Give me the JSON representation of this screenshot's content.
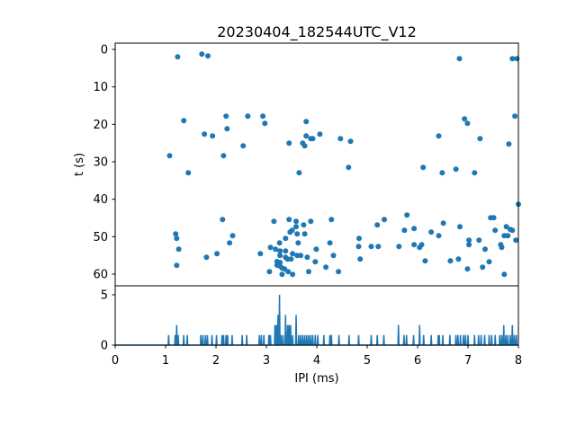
{
  "chart_data": [
    {
      "type": "scatter",
      "title": "20230404_182544UTC_V12",
      "xlabel": "",
      "ylabel": "t (s)",
      "xlim": [
        0,
        8
      ],
      "ylim": [
        62,
        -2
      ],
      "y_inverted": true,
      "yticks": [
        "0",
        "10",
        "20",
        "30",
        "40",
        "50",
        "60"
      ],
      "ytick_values": [
        0,
        10,
        20,
        30,
        40,
        50,
        60
      ],
      "color": "#1f77b4",
      "grid": false,
      "points": [
        [
          1.24,
          2.0
        ],
        [
          1.72,
          1.27
        ],
        [
          1.84,
          1.75
        ],
        [
          2.2,
          17.83
        ],
        [
          2.63,
          17.83
        ],
        [
          2.93,
          17.83
        ],
        [
          1.36,
          19.03
        ],
        [
          2.97,
          19.75
        ],
        [
          3.79,
          19.27
        ],
        [
          2.22,
          21.19
        ],
        [
          1.77,
          22.63
        ],
        [
          1.93,
          23.11
        ],
        [
          3.79,
          23.11
        ],
        [
          3.88,
          23.83
        ],
        [
          3.92,
          23.83
        ],
        [
          4.06,
          22.63
        ],
        [
          3.45,
          25.03
        ],
        [
          3.72,
          25.03
        ],
        [
          3.76,
          25.75
        ],
        [
          2.54,
          25.75
        ],
        [
          1.08,
          28.39
        ],
        [
          2.15,
          28.39
        ],
        [
          1.45,
          32.95
        ],
        [
          3.65,
          32.95
        ],
        [
          2.13,
          45.43
        ],
        [
          3.15,
          45.91
        ],
        [
          3.45,
          45.43
        ],
        [
          3.59,
          45.91
        ],
        [
          3.88,
          45.91
        ],
        [
          3.74,
          46.87
        ],
        [
          3.59,
          47.35
        ],
        [
          3.51,
          48.31
        ],
        [
          3.47,
          48.79
        ],
        [
          1.2,
          49.27
        ],
        [
          1.22,
          50.47
        ],
        [
          2.33,
          49.75
        ],
        [
          3.61,
          49.27
        ],
        [
          3.76,
          49.27
        ],
        [
          3.38,
          50.47
        ],
        [
          2.27,
          51.67
        ],
        [
          3.26,
          51.67
        ],
        [
          3.63,
          51.67
        ],
        [
          1.26,
          53.35
        ],
        [
          3.08,
          52.87
        ],
        [
          3.18,
          53.35
        ],
        [
          3.27,
          53.83
        ],
        [
          3.38,
          53.83
        ],
        [
          3.99,
          53.35
        ],
        [
          2.02,
          54.55
        ],
        [
          2.88,
          54.55
        ],
        [
          3.27,
          55.03
        ],
        [
          3.52,
          54.55
        ],
        [
          3.61,
          55.03
        ],
        [
          3.68,
          55.03
        ],
        [
          1.81,
          55.51
        ],
        [
          3.38,
          55.51
        ],
        [
          3.42,
          55.99
        ],
        [
          3.49,
          55.99
        ],
        [
          3.81,
          55.51
        ],
        [
          3.97,
          56.71
        ],
        [
          3.21,
          56.64
        ],
        [
          3.27,
          56.88
        ],
        [
          3.21,
          57.6
        ],
        [
          3.27,
          57.84
        ],
        [
          1.22,
          57.67
        ],
        [
          3.31,
          58.39
        ],
        [
          3.36,
          58.63
        ],
        [
          3.43,
          59.35
        ],
        [
          3.52,
          60.07
        ],
        [
          3.31,
          60.07
        ],
        [
          3.06,
          59.35
        ],
        [
          3.84,
          59.35
        ],
        [
          4.47,
          23.83
        ],
        [
          4.67,
          24.55
        ],
        [
          4.63,
          31.51
        ],
        [
          4.29,
          45.43
        ],
        [
          5.34,
          45.43
        ],
        [
          5.2,
          46.87
        ],
        [
          4.26,
          51.67
        ],
        [
          4.84,
          50.47
        ],
        [
          4.83,
          52.63
        ],
        [
          5.08,
          52.63
        ],
        [
          5.22,
          52.63
        ],
        [
          5.63,
          52.63
        ],
        [
          4.33,
          55.03
        ],
        [
          4.86,
          55.99
        ],
        [
          4.18,
          58.15
        ],
        [
          4.43,
          59.35
        ],
        [
          6.83,
          2.47
        ],
        [
          7.88,
          2.47
        ],
        [
          7.97,
          2.47
        ],
        [
          7.93,
          17.83
        ],
        [
          6.93,
          18.55
        ],
        [
          6.99,
          19.75
        ],
        [
          6.42,
          23.11
        ],
        [
          7.24,
          23.83
        ],
        [
          7.81,
          25.27
        ],
        [
          6.11,
          31.51
        ],
        [
          6.49,
          32.95
        ],
        [
          6.76,
          31.99
        ],
        [
          7.13,
          32.95
        ],
        [
          8.0,
          41.35
        ],
        [
          5.79,
          44.23
        ],
        [
          7.45,
          44.95
        ],
        [
          7.51,
          44.95
        ],
        [
          6.51,
          46.39
        ],
        [
          5.93,
          47.83
        ],
        [
          5.74,
          48.31
        ],
        [
          6.84,
          47.35
        ],
        [
          7.76,
          47.35
        ],
        [
          7.54,
          48.31
        ],
        [
          7.84,
          48.07
        ],
        [
          7.88,
          48.31
        ],
        [
          6.27,
          48.79
        ],
        [
          6.42,
          49.75
        ],
        [
          7.72,
          49.75
        ],
        [
          7.79,
          49.75
        ],
        [
          7.02,
          50.95
        ],
        [
          7.22,
          50.95
        ],
        [
          7.95,
          50.95
        ],
        [
          5.93,
          52.15
        ],
        [
          6.08,
          52.15
        ],
        [
          6.04,
          52.87
        ],
        [
          7.02,
          52.15
        ],
        [
          7.65,
          52.15
        ],
        [
          7.67,
          52.87
        ],
        [
          7.34,
          53.35
        ],
        [
          6.15,
          56.47
        ],
        [
          6.65,
          56.47
        ],
        [
          6.81,
          55.99
        ],
        [
          7.42,
          56.71
        ],
        [
          6.99,
          58.63
        ],
        [
          7.29,
          58.15
        ],
        [
          7.72,
          60.07
        ]
      ]
    },
    {
      "type": "line",
      "subtype": "histogram",
      "xlabel": "IPI (ms)",
      "ylabel": "",
      "xlim": [
        0,
        8
      ],
      "ylim": [
        0,
        6
      ],
      "xticks": [
        "0",
        "1",
        "2",
        "3",
        "4",
        "5",
        "6",
        "7",
        "8"
      ],
      "xtick_values": [
        0,
        1,
        2,
        3,
        4,
        5,
        6,
        7,
        8
      ],
      "yticks": [
        "0",
        "5"
      ],
      "ytick_values": [
        0,
        5
      ],
      "bin_width": 0.01,
      "color": "#1f77b4",
      "nonzero_bins": [
        [
          1.06,
          1
        ],
        [
          1.19,
          1
        ],
        [
          1.22,
          2
        ],
        [
          1.25,
          1
        ],
        [
          1.36,
          1
        ],
        [
          1.43,
          1
        ],
        [
          1.7,
          1
        ],
        [
          1.74,
          1
        ],
        [
          1.79,
          1
        ],
        [
          1.83,
          1
        ],
        [
          1.92,
          1
        ],
        [
          2.01,
          1
        ],
        [
          2.12,
          1
        ],
        [
          2.15,
          1
        ],
        [
          2.2,
          1
        ],
        [
          2.23,
          1
        ],
        [
          2.32,
          1
        ],
        [
          2.52,
          1
        ],
        [
          2.61,
          1
        ],
        [
          2.86,
          1
        ],
        [
          2.9,
          1
        ],
        [
          2.95,
          1
        ],
        [
          3.05,
          1
        ],
        [
          3.08,
          1
        ],
        [
          3.17,
          2
        ],
        [
          3.2,
          2
        ],
        [
          3.23,
          3
        ],
        [
          3.26,
          5
        ],
        [
          3.29,
          1
        ],
        [
          3.33,
          1
        ],
        [
          3.38,
          3
        ],
        [
          3.42,
          2
        ],
        [
          3.45,
          2
        ],
        [
          3.48,
          2
        ],
        [
          3.52,
          1
        ],
        [
          3.59,
          3
        ],
        [
          3.64,
          1
        ],
        [
          3.68,
          1
        ],
        [
          3.72,
          1
        ],
        [
          3.76,
          1
        ],
        [
          3.8,
          1
        ],
        [
          3.84,
          1
        ],
        [
          3.88,
          1
        ],
        [
          3.92,
          1
        ],
        [
          3.97,
          1
        ],
        [
          4.02,
          1
        ],
        [
          4.14,
          1
        ],
        [
          4.26,
          1
        ],
        [
          4.29,
          1
        ],
        [
          4.44,
          1
        ],
        [
          4.64,
          1
        ],
        [
          4.83,
          1
        ],
        [
          5.08,
          1
        ],
        [
          5.2,
          1
        ],
        [
          5.33,
          1
        ],
        [
          5.62,
          2
        ],
        [
          5.73,
          1
        ],
        [
          5.78,
          1
        ],
        [
          5.92,
          1
        ],
        [
          6.04,
          2
        ],
        [
          6.12,
          1
        ],
        [
          6.27,
          1
        ],
        [
          6.41,
          1
        ],
        [
          6.43,
          1
        ],
        [
          6.5,
          1
        ],
        [
          6.64,
          1
        ],
        [
          6.76,
          1
        ],
        [
          6.8,
          1
        ],
        [
          6.85,
          1
        ],
        [
          6.91,
          1
        ],
        [
          6.95,
          1
        ],
        [
          7.0,
          1
        ],
        [
          7.13,
          1
        ],
        [
          7.21,
          1
        ],
        [
          7.26,
          1
        ],
        [
          7.33,
          1
        ],
        [
          7.42,
          1
        ],
        [
          7.47,
          1
        ],
        [
          7.54,
          1
        ],
        [
          7.63,
          1
        ],
        [
          7.67,
          1
        ],
        [
          7.71,
          2
        ],
        [
          7.75,
          1
        ],
        [
          7.79,
          1
        ],
        [
          7.84,
          1
        ],
        [
          7.88,
          2
        ],
        [
          7.92,
          1
        ],
        [
          7.96,
          1
        ]
      ]
    }
  ]
}
